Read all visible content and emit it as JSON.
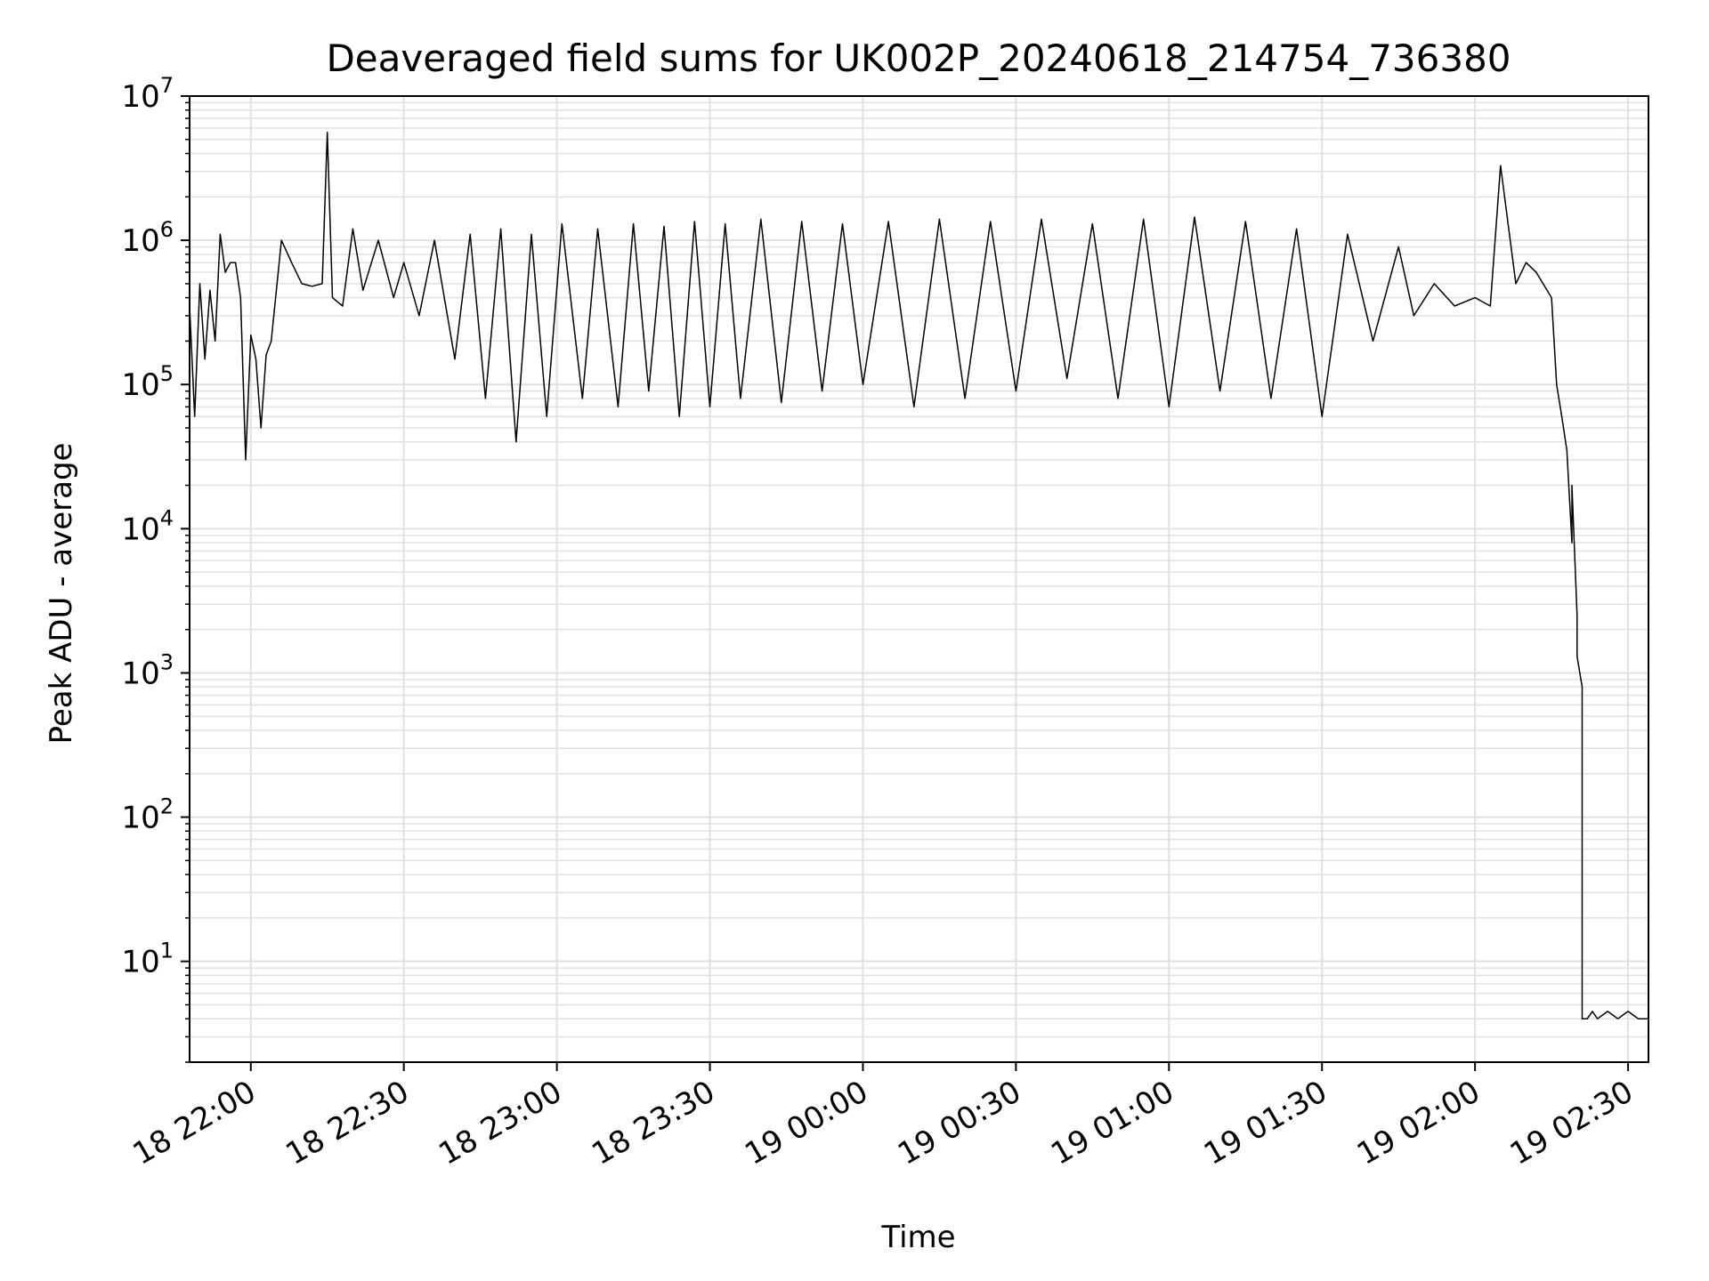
{
  "chart_data": {
    "type": "line",
    "title": "Deaveraged field sums for UK002P_20240618_214754_736380",
    "xlabel": "Time",
    "ylabel": "Peak ADU - average",
    "xscale": "time",
    "yscale": "log",
    "xlim": [
      "18 21:48",
      "19 02:34"
    ],
    "ylim": [
      2,
      10000000
    ],
    "grid": "major and minor",
    "line_color": "#000000",
    "grid_color": "#e0e0e0",
    "x_ticks": [
      "18 22:00",
      "18 22:30",
      "18 23:00",
      "18 23:30",
      "19 00:00",
      "19 00:30",
      "19 01:00",
      "19 01:30",
      "19 02:00",
      "19 02:30"
    ],
    "y_ticks": [
      {
        "value": 10,
        "base": "10",
        "exp": "1"
      },
      {
        "value": 100,
        "base": "10",
        "exp": "2"
      },
      {
        "value": 1000,
        "base": "10",
        "exp": "3"
      },
      {
        "value": 10000,
        "base": "10",
        "exp": "4"
      },
      {
        "value": 100000,
        "base": "10",
        "exp": "5"
      },
      {
        "value": 1000000,
        "base": "10",
        "exp": "6"
      },
      {
        "value": 10000000,
        "base": "10",
        "exp": "7"
      }
    ],
    "series": [
      {
        "x": [
          "18 21:48",
          "18 21:49",
          "18 21:50",
          "18 21:51",
          "18 21:52",
          "18 21:53",
          "18 21:54",
          "18 21:55",
          "18 21:56",
          "18 21:57",
          "18 21:58",
          "18 21:59",
          "18 22:00",
          "18 22:01",
          "18 22:02",
          "18 22:03",
          "18 22:04",
          "18 22:06",
          "18 22:08",
          "18 22:10",
          "18 22:12",
          "18 22:14",
          "18 22:15",
          "18 22:16",
          "18 22:18",
          "18 22:20",
          "18 22:22",
          "18 22:25",
          "18 22:28",
          "18 22:30",
          "18 22:33",
          "18 22:36",
          "18 22:40",
          "18 22:43",
          "18 22:46",
          "18 22:49",
          "18 22:52",
          "18 22:55",
          "18 22:58",
          "18 23:01",
          "18 23:05",
          "18 23:08",
          "18 23:12",
          "18 23:15",
          "18 23:18",
          "18 23:21",
          "18 23:24",
          "18 23:27",
          "18 23:30",
          "18 23:33",
          "18 23:36",
          "18 23:40",
          "18 23:44",
          "18 23:48",
          "18 23:52",
          "18 23:56",
          "19 00:00",
          "19 00:05",
          "19 00:10",
          "19 00:15",
          "19 00:20",
          "19 00:25",
          "19 00:30",
          "19 00:35",
          "19 00:40",
          "19 00:45",
          "19 00:50",
          "19 00:55",
          "19 01:00",
          "19 01:05",
          "19 01:10",
          "19 01:15",
          "19 01:20",
          "19 01:25",
          "19 01:30",
          "19 01:35",
          "19 01:40",
          "19 01:45",
          "19 01:48",
          "19 01:52",
          "19 01:56",
          "19 02:00",
          "19 02:03",
          "19 02:05",
          "19 02:08",
          "19 02:10",
          "19 02:12",
          "19 02:15",
          "19 02:16",
          "19 02:17",
          "19 02:18",
          "19 02:19",
          "19 02:19",
          "19 02:20",
          "19 02:20",
          "19 02:21",
          "19 02:21",
          "19 02:22",
          "19 02:23",
          "19 02:24",
          "19 02:26",
          "19 02:28",
          "19 02:30",
          "19 02:32",
          "19 02:34"
        ],
        "y": [
          350000,
          60000,
          500000,
          150000,
          450000,
          200000,
          1100000,
          600000,
          700000,
          700000,
          400000,
          30000,
          220000,
          150000,
          50000,
          160000,
          200000,
          1000000,
          700000,
          500000,
          480000,
          500000,
          5600000,
          400000,
          350000,
          1200000,
          450000,
          1000000,
          400000,
          700000,
          300000,
          1000000,
          150000,
          1100000,
          80000,
          1200000,
          40000,
          1100000,
          60000,
          1300000,
          80000,
          1200000,
          70000,
          1300000,
          90000,
          1250000,
          60000,
          1350000,
          70000,
          1300000,
          80000,
          1400000,
          75000,
          1350000,
          90000,
          1300000,
          100000,
          1350000,
          70000,
          1400000,
          80000,
          1350000,
          90000,
          1400000,
          110000,
          1300000,
          80000,
          1400000,
          70000,
          1450000,
          90000,
          1350000,
          80000,
          1200000,
          60000,
          1100000,
          200000,
          900000,
          300000,
          500000,
          350000,
          400000,
          350000,
          3300000,
          500000,
          700000,
          600000,
          400000,
          100000,
          60000,
          35000,
          8000,
          20000,
          2500,
          1300,
          800,
          4,
          4,
          4.5,
          4,
          4.5,
          4,
          4.5,
          4,
          4
        ]
      }
    ]
  }
}
